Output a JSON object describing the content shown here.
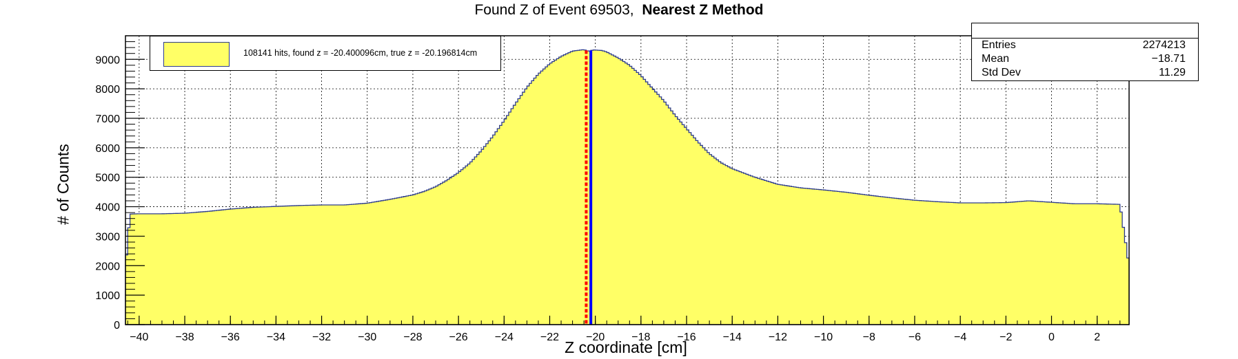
{
  "title": {
    "plain": "Found Z of Event 69503,  ",
    "bold": "Nearest Z Method"
  },
  "stats_box": {
    "entries_label": "Entries",
    "entries_value": "2274213",
    "mean_label": "Mean",
    "mean_value": "−18.71",
    "stddev_label": "Std Dev",
    "stddev_value": "11.29"
  },
  "legend": {
    "text": "108141 hits, found z = -20.400096cm, true z = -20.196814cm"
  },
  "colors": {
    "fill": "#ffff66",
    "line": "#2b3a8c",
    "found": "#ff0000",
    "true": "#0000ff"
  },
  "chart_data": {
    "type": "area",
    "title": "Found Z of Event 69503, Nearest Z Method",
    "xlabel": "Z coordinate [cm]",
    "ylabel": "# of Counts",
    "xlim": [
      -40.6,
      3.4
    ],
    "ylim": [
      0,
      9800
    ],
    "x_ticks": [
      -40,
      -38,
      -36,
      -34,
      -32,
      -30,
      -28,
      -26,
      -24,
      -22,
      -20,
      -18,
      -16,
      -14,
      -12,
      -10,
      -8,
      -6,
      -4,
      -2,
      0,
      2
    ],
    "y_ticks": [
      0,
      1000,
      2000,
      3000,
      4000,
      5000,
      6000,
      7000,
      8000,
      9000
    ],
    "grid": true,
    "legend_position": "top-left",
    "series": [
      {
        "name": "108141 hits, found z = -20.400096cm, true z = -20.196814cm",
        "x": [
          -40.6,
          -40.4,
          -40,
          -39,
          -38,
          -37,
          -36,
          -35,
          -34,
          -33,
          -32,
          -31,
          -30,
          -29,
          -28,
          -27.5,
          -27,
          -26.5,
          -26,
          -25.5,
          -25,
          -24.5,
          -24,
          -23.5,
          -23,
          -22.5,
          -22,
          -21.5,
          -21,
          -20.5,
          -20.3,
          -20.1,
          -19.7,
          -19.5,
          -19,
          -18.5,
          -18,
          -17.5,
          -17,
          -16.5,
          -16,
          -15.5,
          -15,
          -14.5,
          -14,
          -13,
          -12,
          -11,
          -10,
          -9,
          -8,
          -7,
          -6,
          -5,
          -4,
          -3,
          -2,
          -1,
          0,
          1,
          2,
          3,
          3.4
        ],
        "y": [
          1900,
          3750,
          3760,
          3760,
          3780,
          3840,
          3920,
          3980,
          4010,
          4040,
          4060,
          4060,
          4120,
          4250,
          4400,
          4520,
          4680,
          4900,
          5160,
          5480,
          5900,
          6380,
          6920,
          7500,
          8050,
          8500,
          8850,
          9100,
          9280,
          9330,
          9270,
          9320,
          9300,
          9250,
          9050,
          8800,
          8450,
          8020,
          7600,
          7100,
          6650,
          6200,
          5800,
          5500,
          5290,
          5000,
          4760,
          4640,
          4570,
          4490,
          4390,
          4300,
          4220,
          4170,
          4130,
          4130,
          4140,
          4200,
          4150,
          4100,
          4100,
          4080,
          2000
        ]
      }
    ],
    "markers": [
      {
        "name": "found z",
        "x": -20.400096,
        "style": "dashed",
        "color": "#ff0000"
      },
      {
        "name": "true z",
        "x": -20.196814,
        "style": "solid",
        "color": "#0000ff"
      }
    ]
  }
}
